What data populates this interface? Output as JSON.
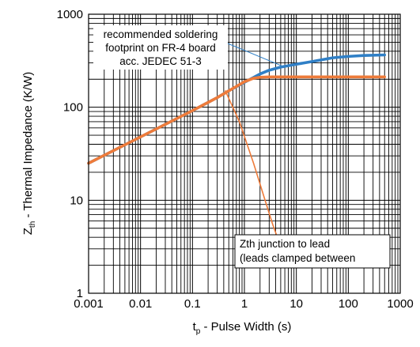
{
  "chart_data": {
    "type": "line",
    "xscale": "log",
    "yscale": "log",
    "xlim": [
      0.001,
      1000
    ],
    "ylim": [
      1,
      1000
    ],
    "grid": true,
    "xlabel": {
      "main": "t",
      "sub": "p",
      "rest": " - Pulse Width (s)"
    },
    "ylabel": {
      "main": "Z",
      "sub": "th",
      "rest": " - Thermal Impedance (K/W)"
    },
    "xticks": [
      {
        "value": 0.001,
        "label": "0.001"
      },
      {
        "value": 0.01,
        "label": "0.01"
      },
      {
        "value": 0.1,
        "label": "0.1"
      },
      {
        "value": 1,
        "label": "1"
      },
      {
        "value": 10,
        "label": "10"
      },
      {
        "value": 100,
        "label": "100"
      },
      {
        "value": 1000,
        "label": "1000"
      }
    ],
    "yticks": [
      {
        "value": 1,
        "label": "1"
      },
      {
        "value": 10,
        "label": "10"
      },
      {
        "value": 100,
        "label": "100"
      },
      {
        "value": 1000,
        "label": "1000"
      }
    ],
    "series": [
      {
        "color": "#2f7fc6",
        "x": [
          0.001,
          0.01,
          0.1,
          0.3,
          0.5,
          1,
          2,
          3,
          5,
          10,
          20,
          50,
          100,
          200,
          500
        ],
        "y": [
          25,
          48,
          92,
          127,
          150,
          185,
          228,
          250,
          270,
          290,
          310,
          340,
          352,
          360,
          365
        ]
      },
      {
        "color": "#ee7b3a",
        "x": [
          0.001,
          0.01,
          0.1,
          0.3,
          0.5,
          1,
          1.5,
          2,
          3,
          5,
          10,
          100,
          500
        ],
        "y": [
          25,
          48,
          92,
          127,
          150,
          188,
          205,
          210,
          212,
          212,
          212,
          212,
          212
        ]
      },
      {
        "color": "#ee7b3a",
        "x": [
          0.43,
          0.8,
          1.5,
          2.5,
          3.5,
          4.7
        ],
        "y": [
          150,
          70,
          25,
          10,
          5.5,
          3.5
        ]
      }
    ],
    "annotations": [
      {
        "id": "soldering-note",
        "lines": [
          "recommended soldering",
          "footprint on FR-4 board",
          "acc. JEDEC 51-3"
        ],
        "leader_color": "#2f7fc6",
        "points_to": {
          "x": 6,
          "y": 270
        }
      },
      {
        "id": "zth-note",
        "lines": [
          "Zth junction to lead",
          "(leads clamped between"
        ]
      }
    ]
  }
}
